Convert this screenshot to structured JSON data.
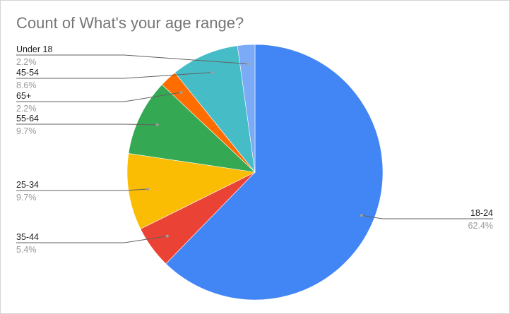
{
  "chart_data": {
    "type": "pie",
    "title": "Count of What's your age range?",
    "slices": [
      {
        "label": "18-24",
        "value": 62.4,
        "pct_label": "62.4%",
        "color": "#4285f4"
      },
      {
        "label": "35-44",
        "value": 5.4,
        "pct_label": "5.4%",
        "color": "#ea4335"
      },
      {
        "label": "25-34",
        "value": 9.7,
        "pct_label": "9.7%",
        "color": "#fbbc04"
      },
      {
        "label": "55-64",
        "value": 9.7,
        "pct_label": "9.7%",
        "color": "#34a853"
      },
      {
        "label": "65+",
        "value": 2.2,
        "pct_label": "2.2%",
        "color": "#ff6d01"
      },
      {
        "label": "45-54",
        "value": 8.6,
        "pct_label": "8.6%",
        "color": "#46bdc6"
      },
      {
        "label": "Under 18",
        "value": 2.2,
        "pct_label": "2.2%",
        "color": "#7baaf7"
      }
    ],
    "legend": "none",
    "label_placement": "outside with leader lines"
  }
}
